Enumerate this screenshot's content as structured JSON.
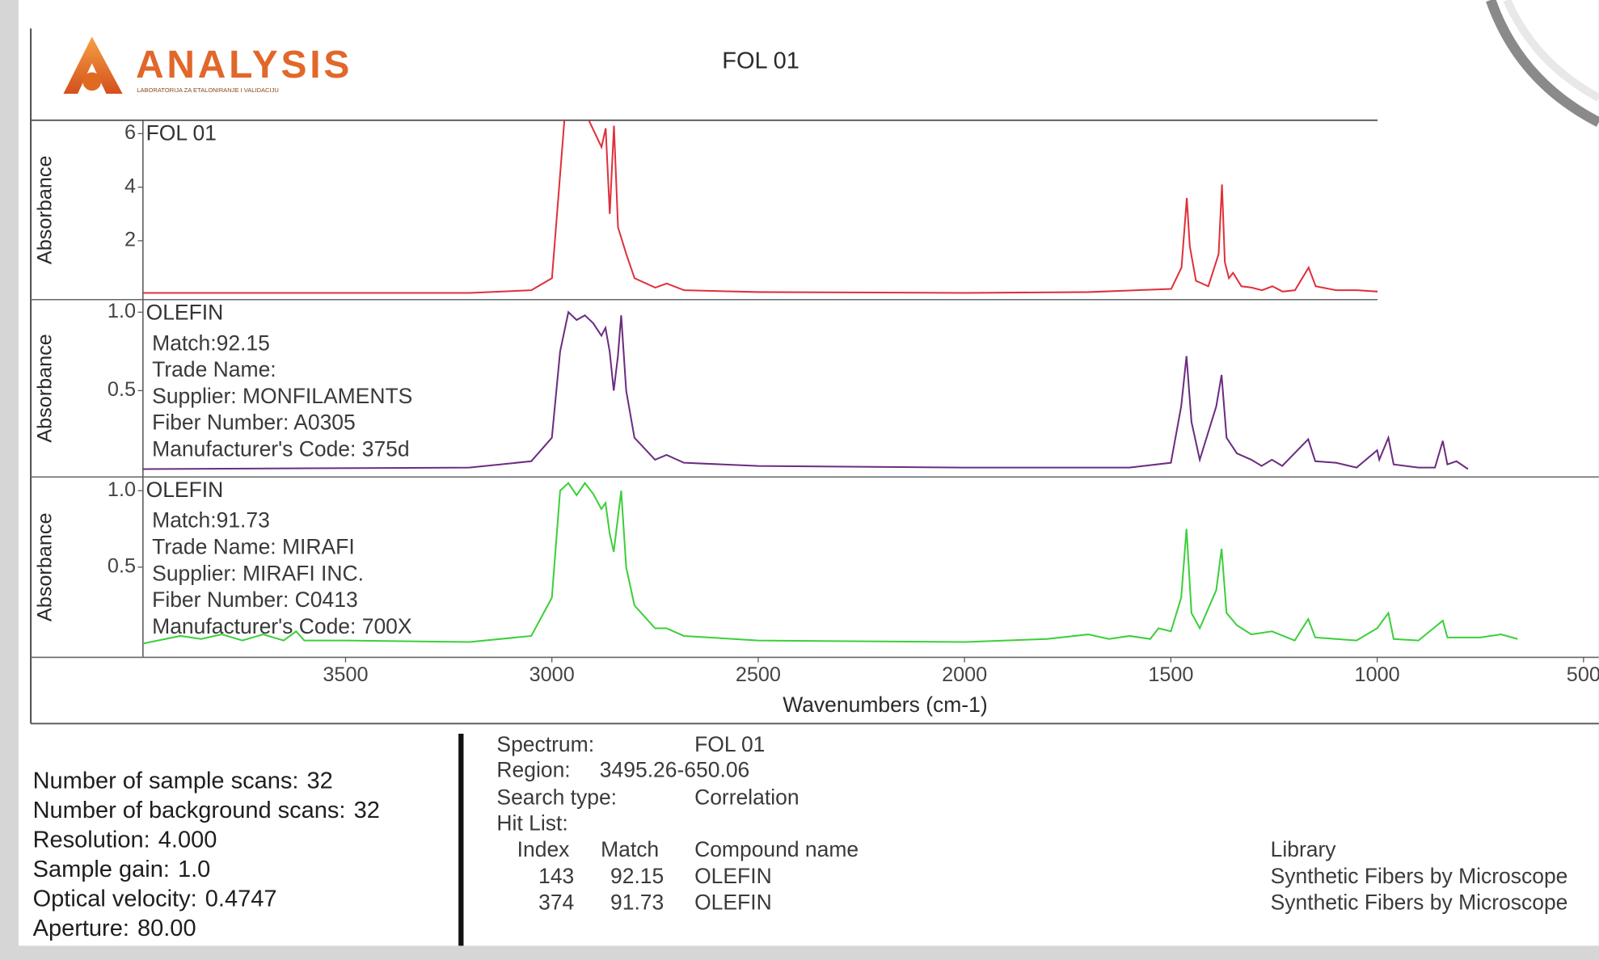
{
  "header": {
    "logo": "ANALYSIS",
    "logo_subtitle": "LABORATORIJA ZA ETALONIRANJE I VALIDACIJU",
    "title": "FOL 01"
  },
  "chart_data": [
    {
      "type": "line",
      "y_label": "Absorbance",
      "xlim": [
        3991,
        1000
      ],
      "ylim": [
        -0.2,
        6.5
      ],
      "yticks": [
        2,
        4,
        6
      ],
      "annotations": [],
      "series": [
        {
          "name": "FOL 01",
          "color": "#e0303a",
          "x": [
            3991,
            3500,
            3200,
            3050,
            3000,
            2970,
            2955,
            2920,
            2880,
            2870,
            2860,
            2850,
            2840,
            2820,
            2800,
            2750,
            2722,
            2680,
            2500,
            2000,
            1700,
            1500,
            1475,
            1462,
            1455,
            1440,
            1410,
            1385,
            1377,
            1370,
            1360,
            1350,
            1330,
            1305,
            1280,
            1255,
            1230,
            1200,
            1167,
            1150,
            1100,
            1050,
            1000
          ],
          "values": [
            0.05,
            0.05,
            0.05,
            0.15,
            0.6,
            6.5,
            7.0,
            6.8,
            5.5,
            6.2,
            3.0,
            6.3,
            2.5,
            1.5,
            0.6,
            0.25,
            0.4,
            0.15,
            0.08,
            0.05,
            0.08,
            0.2,
            1.0,
            3.6,
            1.8,
            0.5,
            0.3,
            1.5,
            4.1,
            1.2,
            0.6,
            0.8,
            0.3,
            0.25,
            0.15,
            0.3,
            0.1,
            0.15,
            1.0,
            0.3,
            0.15,
            0.15,
            0.1
          ]
        }
      ]
    },
    {
      "type": "line",
      "y_label": "Absorbance",
      "xlim": [
        3991,
        463
      ],
      "ylim": [
        -0.05,
        1.08
      ],
      "yticks": [
        0.5,
        {
          "value": 1,
          "label": "1.0"
        }
      ],
      "annotations": [
        "Match:92.15",
        "Trade Name:",
        "Supplier:  MONFILAMENTS",
        "Fiber Number:  A0305",
        "Manufacturer's Code:  375d"
      ],
      "series": [
        {
          "name": "OLEFIN",
          "color": "#6b2c80",
          "x": [
            3991,
            3200,
            3050,
            3000,
            2980,
            2960,
            2940,
            2920,
            2900,
            2880,
            2870,
            2860,
            2850,
            2840,
            2832,
            2820,
            2800,
            2750,
            2722,
            2680,
            2500,
            2000,
            1600,
            1500,
            1475,
            1462,
            1450,
            1430,
            1390,
            1377,
            1365,
            1340,
            1305,
            1280,
            1255,
            1230,
            1167,
            1150,
            1100,
            1050,
            1000,
            995,
            973,
            960,
            900,
            860,
            841,
            830,
            808,
            780
          ],
          "values": [
            0.0,
            0.01,
            0.05,
            0.2,
            0.75,
            1.0,
            0.95,
            0.98,
            0.93,
            0.85,
            0.9,
            0.75,
            0.5,
            0.72,
            0.98,
            0.5,
            0.2,
            0.06,
            0.09,
            0.04,
            0.02,
            0.01,
            0.01,
            0.04,
            0.4,
            0.72,
            0.3,
            0.06,
            0.4,
            0.6,
            0.2,
            0.1,
            0.06,
            0.02,
            0.06,
            0.02,
            0.19,
            0.05,
            0.04,
            0.01,
            0.12,
            0.06,
            0.2,
            0.03,
            0.01,
            0.01,
            0.18,
            0.03,
            0.05,
            0.0
          ]
        }
      ]
    },
    {
      "type": "line",
      "y_label": "Absorbance",
      "x_label": "Wavenumbers (cm-1)",
      "xlim": [
        3991,
        463
      ],
      "ylim": [
        -0.09,
        1.09
      ],
      "xticks": [
        3500,
        3000,
        2500,
        2000,
        1500,
        1000,
        500
      ],
      "yticks": [
        0.5,
        {
          "value": 1,
          "label": "1.0"
        }
      ],
      "annotations": [
        "Match:91.73",
        "Trade Name:  MIRAFI",
        "Supplier:  MIRAFI INC.",
        "Fiber Number:  C0413",
        "Manufacturer's Code:  700X"
      ],
      "series": [
        {
          "name": "OLEFIN",
          "color": "#3ccf3c",
          "x": [
            3991,
            3900,
            3850,
            3800,
            3750,
            3700,
            3650,
            3620,
            3600,
            3500,
            3200,
            3050,
            3000,
            2980,
            2960,
            2940,
            2920,
            2900,
            2880,
            2870,
            2860,
            2850,
            2832,
            2820,
            2800,
            2750,
            2722,
            2680,
            2500,
            2000,
            1800,
            1700,
            1650,
            1600,
            1550,
            1530,
            1500,
            1475,
            1462,
            1450,
            1430,
            1390,
            1377,
            1365,
            1340,
            1305,
            1255,
            1200,
            1167,
            1150,
            1050,
            1000,
            973,
            960,
            900,
            841,
            830,
            750,
            700,
            660
          ],
          "values": [
            0.0,
            0.05,
            0.03,
            0.06,
            0.02,
            0.06,
            0.02,
            0.08,
            0.02,
            0.02,
            0.01,
            0.05,
            0.3,
            1.0,
            1.05,
            0.97,
            1.05,
            0.98,
            0.88,
            0.92,
            0.72,
            0.6,
            1.0,
            0.5,
            0.25,
            0.1,
            0.1,
            0.05,
            0.02,
            0.01,
            0.03,
            0.06,
            0.03,
            0.05,
            0.03,
            0.1,
            0.08,
            0.3,
            0.75,
            0.2,
            0.1,
            0.35,
            0.62,
            0.2,
            0.12,
            0.06,
            0.08,
            0.02,
            0.16,
            0.04,
            0.02,
            0.1,
            0.2,
            0.03,
            0.02,
            0.15,
            0.04,
            0.04,
            0.06,
            0.03
          ]
        }
      ]
    }
  ],
  "scan_info": [
    {
      "label": "Number of sample scans:",
      "value": "32"
    },
    {
      "label": "Number of background scans:",
      "value": "32"
    },
    {
      "label": "Resolution:",
      "value": "4.000"
    },
    {
      "label": "Sample gain:",
      "value": "1.0"
    },
    {
      "label": "Optical velocity:",
      "value": "0.4747"
    },
    {
      "label": "Aperture:",
      "value": "80.00"
    }
  ],
  "search": {
    "fields": [
      {
        "label": "Spectrum:",
        "value": "FOL 01"
      },
      {
        "label": "Region:",
        "value": "3495.26-650.06"
      },
      {
        "label": "Search type:",
        "value": "Correlation"
      },
      {
        "label": "Hit List:"
      }
    ],
    "hit_list": {
      "columns": [
        "Index",
        "Match",
        "Compound name",
        "Library"
      ],
      "rows": [
        [
          "143",
          "92.15",
          "OLEFIN",
          "Synthetic Fibers by Microscope"
        ],
        [
          "374",
          "91.73",
          "OLEFIN",
          "Synthetic Fibers by Microscope"
        ]
      ]
    }
  }
}
